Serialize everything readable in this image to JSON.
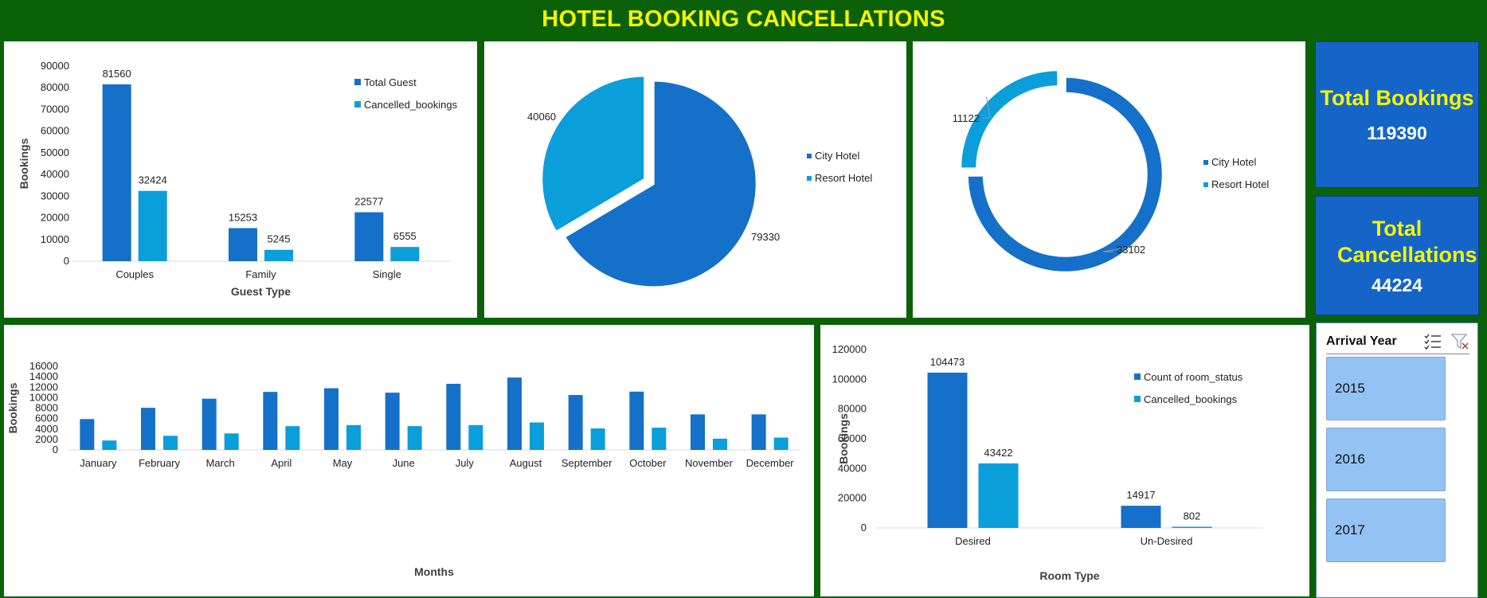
{
  "title": "HOTEL BOOKING CANCELLATIONS",
  "colors": {
    "total": "#1570c9",
    "cancelled": "#0a9edb",
    "background": "#0b6108",
    "title": "#f5f500"
  },
  "kpis": {
    "total_bookings": {
      "label": "Total Bookings",
      "value": "119390"
    },
    "total_cancellations": {
      "label": "Total Cancellations",
      "value": "44224"
    }
  },
  "slicer": {
    "title": "Arrival Year",
    "items": [
      "2015",
      "2016",
      "2017"
    ],
    "icons": [
      "multi-select-icon",
      "clear-filter-icon"
    ]
  },
  "chart_data": [
    {
      "id": "guest-type",
      "type": "bar",
      "categories": [
        "Couples",
        "Family",
        "Single"
      ],
      "series": [
        {
          "name": "Total Guest",
          "values": [
            81560,
            15253,
            22577
          ]
        },
        {
          "name": "Cancelled_bookings",
          "values": [
            32424,
            5245,
            6555
          ]
        }
      ],
      "xlabel": "Guest Type",
      "ylabel": "Bookings",
      "ylim": [
        0,
        90000
      ],
      "yticks": [
        0,
        10000,
        20000,
        30000,
        40000,
        50000,
        60000,
        70000,
        80000,
        90000
      ],
      "data_labels": true,
      "legend": "top-right",
      "grid": false
    },
    {
      "id": "hotel-share",
      "type": "pie",
      "categories": [
        "City Hotel",
        "Resort Hotel"
      ],
      "values": [
        79330,
        40060
      ],
      "legend": "right"
    },
    {
      "id": "hotel-cancellations",
      "type": "pie",
      "categories": [
        "City Hotel",
        "Resort Hotel"
      ],
      "values": [
        33102,
        11122
      ],
      "legend": "right"
    },
    {
      "id": "months",
      "type": "bar",
      "categories": [
        "January",
        "February",
        "March",
        "April",
        "May",
        "June",
        "July",
        "August",
        "September",
        "October",
        "November",
        "December"
      ],
      "series": [
        {
          "name": "Total Guest",
          "values": [
            5900,
            8050,
            9800,
            11100,
            11800,
            10950,
            12650,
            13850,
            10500,
            11150,
            6800,
            6800
          ]
        },
        {
          "name": "Cancelled_bookings",
          "values": [
            1800,
            2700,
            3150,
            4550,
            4750,
            4550,
            4750,
            5250,
            4100,
            4250,
            2150,
            2350
          ]
        }
      ],
      "xlabel": "Months",
      "ylabel": "Bookings",
      "ylim": [
        0,
        16000
      ],
      "yticks": [
        0,
        2000,
        4000,
        6000,
        8000,
        10000,
        12000,
        14000,
        16000
      ],
      "data_labels": false,
      "legend": "top-right",
      "grid": false
    },
    {
      "id": "room-type",
      "type": "bar",
      "categories": [
        "Desired",
        "Un-Desired"
      ],
      "series": [
        {
          "name": "Count of room_status",
          "values": [
            104473,
            14917
          ]
        },
        {
          "name": "Cancelled_bookings",
          "values": [
            43422,
            802
          ]
        }
      ],
      "xlabel": "Room Type",
      "ylabel": "Bookings",
      "ylim": [
        0,
        120000
      ],
      "yticks": [
        0,
        20000,
        40000,
        60000,
        80000,
        100000,
        120000
      ],
      "data_labels": true,
      "legend": "top-right",
      "grid": false
    }
  ]
}
